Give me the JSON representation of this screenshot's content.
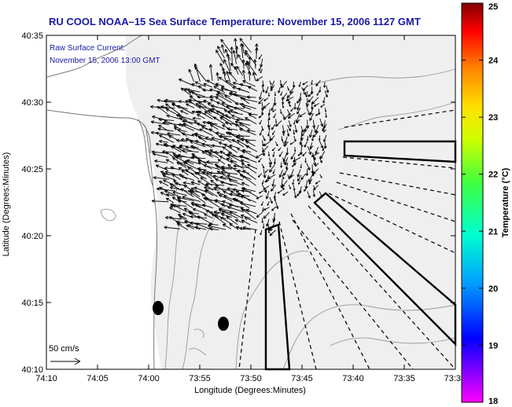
{
  "title": "RU COOL  NOAA–15  Sea Surface Temperature:  November 15, 2006 1127 GMT",
  "annotation": {
    "line1": "Raw Surface Current:",
    "line2": "November 15, 2006 13:00 GMT"
  },
  "scale_label": "50 cm/s",
  "x_axis": {
    "label": "Longitude (Degrees:Minutes)",
    "ticks": [
      "74:10",
      "74:05",
      "74:00",
      "73:55",
      "73:50",
      "73:45",
      "73:40",
      "73:35",
      "73:3"
    ]
  },
  "y_axis": {
    "label": "Latitude (Degrees:Minutes)",
    "ticks": [
      "40:35",
      "40:30",
      "40:25",
      "40:20",
      "40:15",
      "40:10"
    ]
  },
  "colorbar": {
    "label": "Temperature (°C)",
    "ticks": [
      "25",
      "24",
      "23",
      "22",
      "21",
      "20",
      "19",
      "18"
    ],
    "min": 18,
    "max": 25
  },
  "colors": {
    "title": "#1a1aa6",
    "land": "#ffffff",
    "ocean_cloud": "#efefef",
    "arrows": "#000000"
  }
}
